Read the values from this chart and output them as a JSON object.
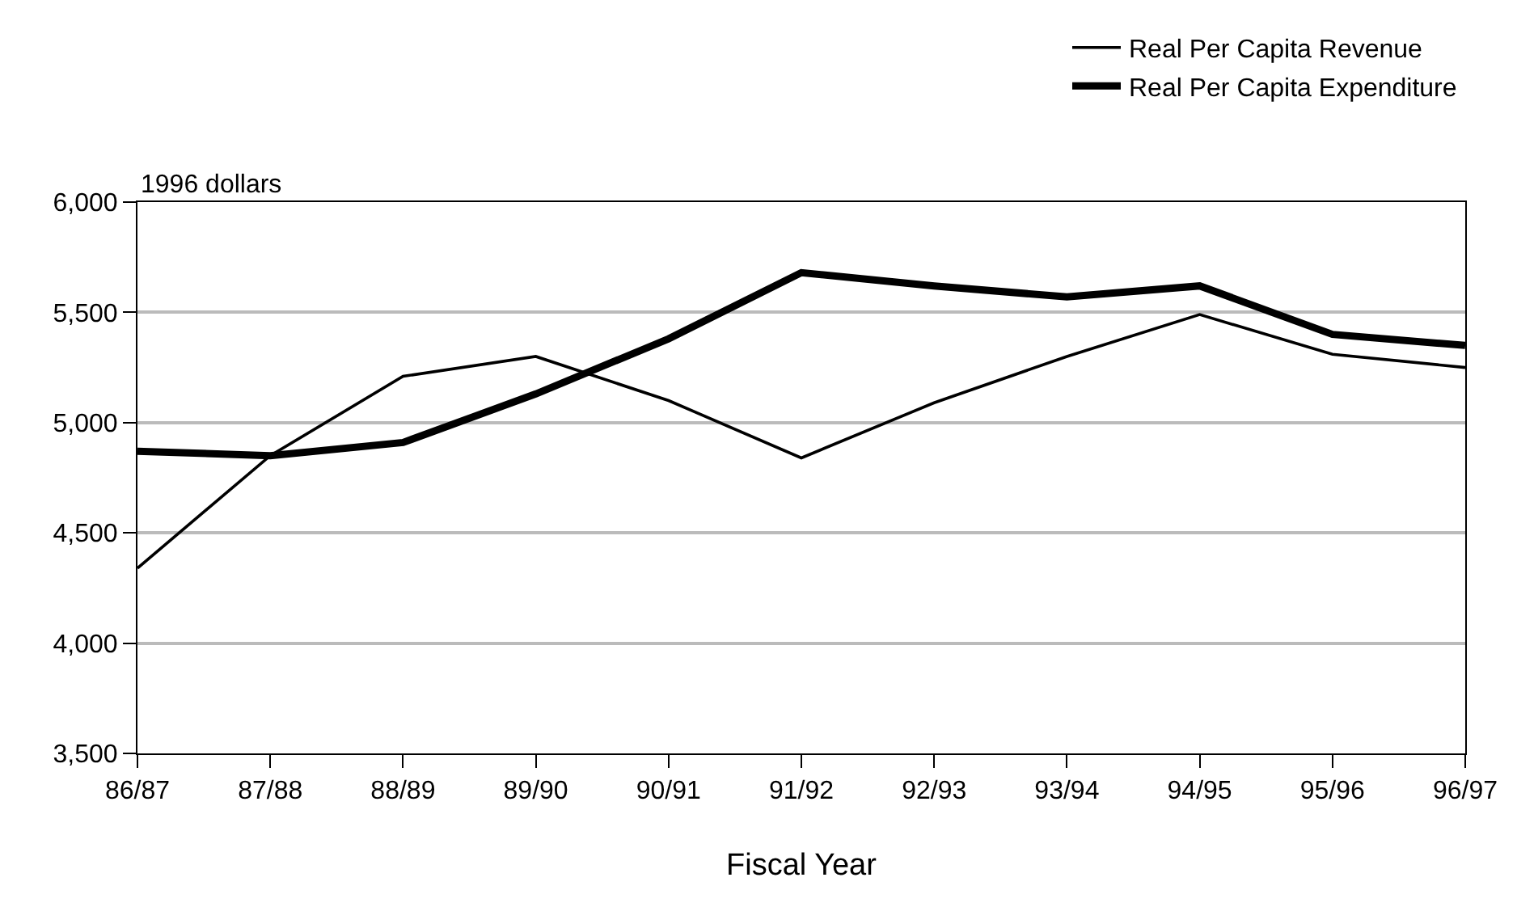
{
  "chart_data": {
    "type": "line",
    "ylabel": "1996 dollars",
    "xlabel": "Fiscal Year",
    "categories": [
      "86/87",
      "87/88",
      "88/89",
      "89/90",
      "90/91",
      "91/92",
      "92/93",
      "93/94",
      "94/95",
      "95/96",
      "96/97"
    ],
    "series": [
      {
        "name": "Real Per Capita Revenue",
        "color": "#000000",
        "values": [
          4340,
          4850,
          5210,
          5300,
          5100,
          4840,
          5090,
          5300,
          5490,
          5310,
          5250
        ]
      },
      {
        "name": "Real Per Capita Expenditure",
        "color": "#000000",
        "values": [
          4870,
          4850,
          4910,
          5130,
          5380,
          5680,
          5620,
          5570,
          5620,
          5400,
          5350
        ]
      }
    ],
    "ylim": [
      3500,
      6000
    ],
    "yticks": [
      {
        "value": 3500,
        "label": "3,500"
      },
      {
        "value": 4000,
        "label": "4,000"
      },
      {
        "value": 4500,
        "label": "4,500"
      },
      {
        "value": 5000,
        "label": "5,000"
      },
      {
        "value": 5500,
        "label": "5,500"
      },
      {
        "value": 6000,
        "label": "6,000"
      }
    ],
    "grid": "y",
    "legend": "top right",
    "marker": "none",
    "line_style": "solid"
  }
}
